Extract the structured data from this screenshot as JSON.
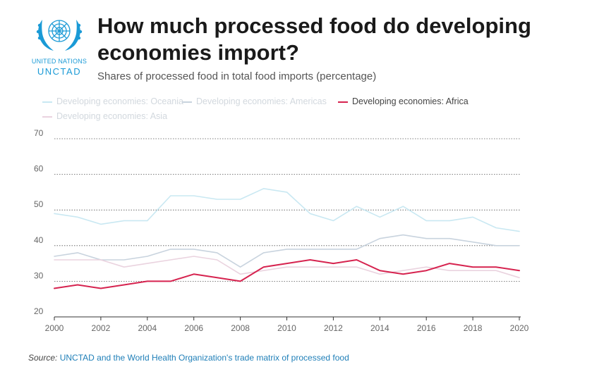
{
  "header": {
    "org_top": "UNITED NATIONS",
    "org_name": "UNCTAD",
    "title": "How much processed food do developing economies import?",
    "subtitle": "Shares of processed food in total food imports (percentage)"
  },
  "source": {
    "label": "Source:",
    "text": "UNCTAD and the World Health Organization's trade matrix of processed food"
  },
  "colors": {
    "logo": "#1a9ad6",
    "grid": "#555555",
    "axis": "#333333",
    "tick_text": "#666666"
  },
  "chart_data": {
    "type": "line",
    "title": "How much processed food do developing economies import?",
    "subtitle": "Shares of processed food in total food imports (percentage)",
    "xlabel": "",
    "ylabel": "",
    "x": [
      2000,
      2001,
      2002,
      2003,
      2004,
      2005,
      2006,
      2007,
      2008,
      2009,
      2010,
      2011,
      2012,
      2013,
      2014,
      2015,
      2016,
      2017,
      2018,
      2019,
      2020
    ],
    "x_ticks": [
      "2000",
      "2002",
      "2004",
      "2006",
      "2008",
      "2010",
      "2012",
      "2014",
      "2016",
      "2018",
      "2020"
    ],
    "y_ticks": [
      "20",
      "30",
      "40",
      "50",
      "60",
      "70"
    ],
    "ylim": [
      20,
      70
    ],
    "grid": true,
    "legend_position": "top-left",
    "series": [
      {
        "name": "Developing economies: Oceania",
        "color": "#c9e8f2",
        "highlighted": false,
        "values": [
          49,
          48,
          46,
          47,
          47,
          54,
          54,
          53,
          53,
          56,
          55,
          49,
          47,
          51,
          48,
          51,
          47,
          47,
          48,
          45,
          44
        ]
      },
      {
        "name": "Developing economies: Americas",
        "color": "#c8d3de",
        "highlighted": false,
        "values": [
          37,
          38,
          36,
          36,
          37,
          39,
          39,
          38,
          34,
          38,
          39,
          39,
          39,
          39,
          42,
          43,
          42,
          42,
          41,
          40,
          40
        ]
      },
      {
        "name": "Developing economies: Africa",
        "color": "#d6234f",
        "highlighted": true,
        "values": [
          28,
          29,
          28,
          29,
          30,
          30,
          32,
          31,
          30,
          34,
          35,
          36,
          35,
          36,
          33,
          32,
          33,
          35,
          34,
          34,
          33
        ]
      },
      {
        "name": "Developing economies: Asia",
        "color": "#ead3df",
        "highlighted": false,
        "values": [
          36,
          36,
          36,
          34,
          35,
          36,
          37,
          36,
          32,
          33,
          34,
          34,
          34,
          34,
          32,
          33,
          34,
          33,
          33,
          33,
          31
        ]
      }
    ]
  }
}
